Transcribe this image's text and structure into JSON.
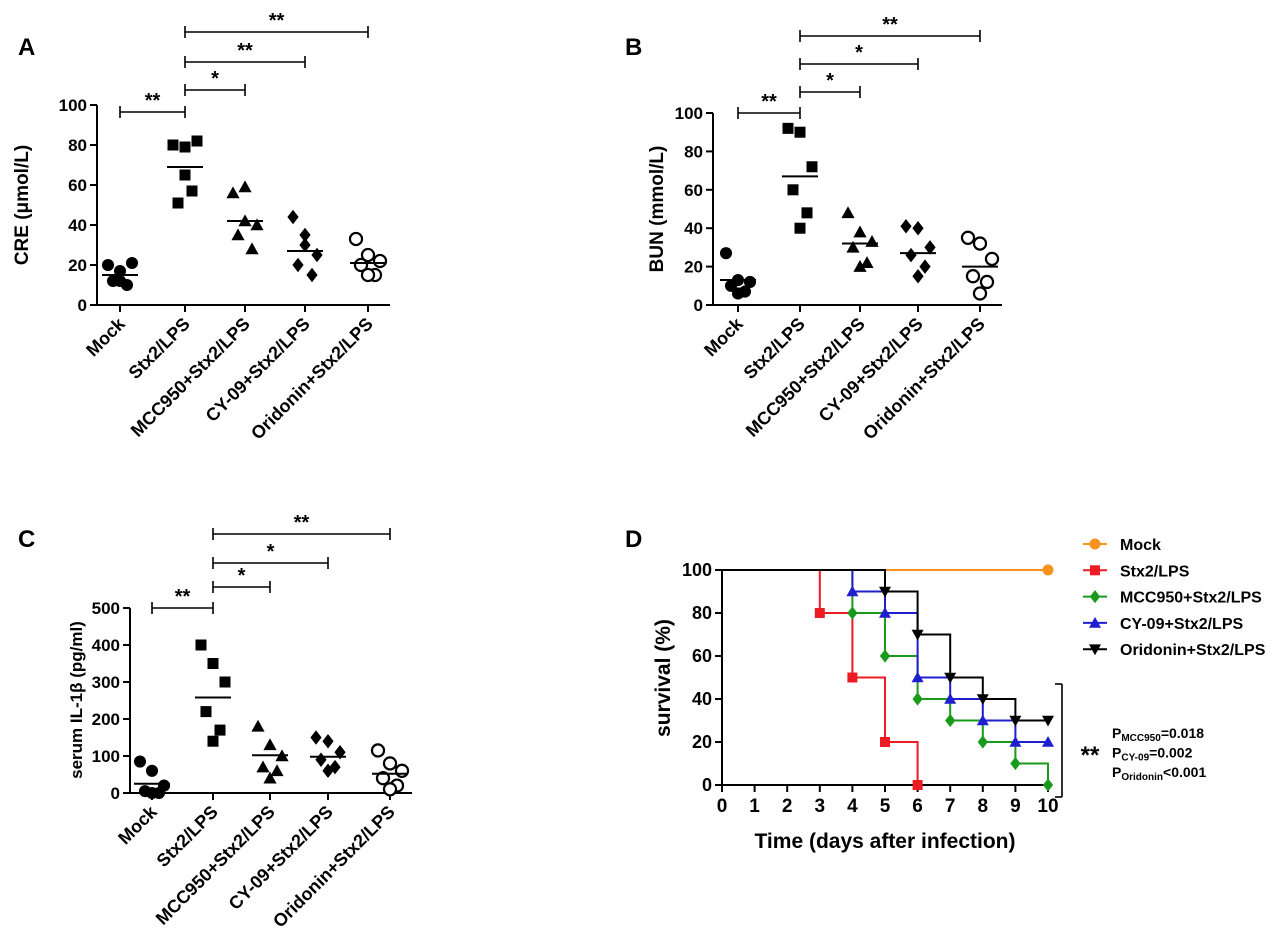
{
  "chart_data": [
    {
      "type": "dot",
      "title": "A",
      "ylabel": "CRE (μmol/L)",
      "categories": [
        "Mock",
        "Stx2/LPS",
        "MCC950+Stx2/LPS",
        "CY-09+Stx2/LPS",
        "Oridonin+Stx2/LPS"
      ],
      "markers": [
        "circle",
        "square",
        "triangle",
        "diamond",
        "open-circle"
      ],
      "values": [
        [
          20,
          17,
          21,
          12,
          10,
          12
        ],
        [
          80,
          79,
          82,
          51,
          57,
          65
        ],
        [
          56,
          59,
          40,
          35,
          28,
          42
        ],
        [
          44,
          35,
          25,
          20,
          15,
          30
        ],
        [
          33,
          25,
          22,
          20,
          15,
          15
        ]
      ],
      "means": [
        15,
        69,
        42,
        27,
        21
      ],
      "ylim": [
        0,
        100
      ],
      "yticks": [
        0,
        20,
        40,
        60,
        80,
        100
      ],
      "brackets": [
        {
          "from": "Mock",
          "to": "Stx2/LPS",
          "label": "**"
        },
        {
          "from": "Stx2/LPS",
          "to": "MCC950+Stx2/LPS",
          "label": "*"
        },
        {
          "from": "Stx2/LPS",
          "to": "CY-09+Stx2/LPS",
          "label": "**"
        },
        {
          "from": "Stx2/LPS",
          "to": "Oridonin+Stx2/LPS",
          "label": "**"
        }
      ]
    },
    {
      "type": "dot",
      "title": "B",
      "ylabel": "BUN (mmol/L)",
      "categories": [
        "Mock",
        "Stx2/LPS",
        "MCC950+Stx2/LPS",
        "CY-09+Stx2/LPS",
        "Oridonin+Stx2/LPS"
      ],
      "markers": [
        "circle",
        "square",
        "triangle",
        "diamond",
        "open-circle"
      ],
      "values": [
        [
          27,
          13,
          12,
          10,
          7,
          6
        ],
        [
          92,
          90,
          72,
          60,
          48,
          40
        ],
        [
          48,
          38,
          33,
          30,
          22,
          20
        ],
        [
          41,
          40,
          30,
          26,
          20,
          15
        ],
        [
          35,
          32,
          24,
          15,
          12,
          6
        ]
      ],
      "means": [
        13,
        67,
        32,
        27,
        20
      ],
      "ylim": [
        0,
        100
      ],
      "yticks": [
        0,
        20,
        40,
        60,
        80,
        100
      ],
      "brackets": [
        {
          "from": "Mock",
          "to": "Stx2/LPS",
          "label": "**"
        },
        {
          "from": "Stx2/LPS",
          "to": "MCC950+Stx2/LPS",
          "label": "*"
        },
        {
          "from": "Stx2/LPS",
          "to": "CY-09+Stx2/LPS",
          "label": "*"
        },
        {
          "from": "Stx2/LPS",
          "to": "Oridonin+Stx2/LPS",
          "label": "**"
        }
      ]
    },
    {
      "type": "dot",
      "title": "C",
      "ylabel": "serum IL-1β  (pg/ml)",
      "categories": [
        "Mock",
        "Stx2/LPS",
        "MCC950+Stx2/LPS",
        "CY-09+Stx2/LPS",
        "Oridonin+Stx2/LPS"
      ],
      "markers": [
        "circle",
        "square",
        "triangle",
        "diamond",
        "open-circle"
      ],
      "values": [
        [
          85,
          60,
          20,
          5,
          0,
          0
        ],
        [
          400,
          350,
          300,
          220,
          170,
          140
        ],
        [
          180,
          130,
          100,
          70,
          60,
          40
        ],
        [
          150,
          140,
          110,
          90,
          70,
          60
        ],
        [
          115,
          80,
          60,
          40,
          20,
          10
        ]
      ],
      "means": [
        25,
        258,
        102,
        98,
        52
      ],
      "ylim": [
        0,
        500
      ],
      "yticks": [
        0,
        100,
        200,
        300,
        400,
        500
      ],
      "brackets": [
        {
          "from": "Mock",
          "to": "Stx2/LPS",
          "label": "**"
        },
        {
          "from": "Stx2/LPS",
          "to": "MCC950+Stx2/LPS",
          "label": "*"
        },
        {
          "from": "Stx2/LPS",
          "to": "CY-09+Stx2/LPS",
          "label": "*"
        },
        {
          "from": "Stx2/LPS",
          "to": "Oridonin+Stx2/LPS",
          "label": "**"
        }
      ]
    },
    {
      "type": "step",
      "title": "D",
      "xlabel": "Time (days after infection)",
      "ylabel": "survival (%)",
      "xlim": [
        0,
        10
      ],
      "xticks": [
        0,
        1,
        2,
        3,
        4,
        5,
        6,
        7,
        8,
        9,
        10
      ],
      "ylim": [
        0,
        100
      ],
      "yticks": [
        0,
        20,
        40,
        60,
        80,
        100
      ],
      "series": [
        {
          "name": "Mock",
          "color": "#f7931e",
          "marker": "circle",
          "x": [
            0,
            10
          ],
          "values": [
            100,
            100
          ]
        },
        {
          "name": "Stx2/LPS",
          "color": "#ed1c24",
          "marker": "square",
          "x": [
            0,
            3,
            4,
            5,
            6
          ],
          "values": [
            100,
            80,
            50,
            20,
            0
          ]
        },
        {
          "name": "MCC950+Stx2/LPS",
          "color": "#1a9a1a",
          "marker": "diamond",
          "x": [
            0,
            4,
            5,
            6,
            7,
            8,
            9,
            10
          ],
          "values": [
            100,
            80,
            60,
            40,
            30,
            20,
            10,
            0
          ]
        },
        {
          "name": "CY-09+Stx2/LPS",
          "color": "#1f1fd0",
          "marker": "triangle",
          "x": [
            0,
            4,
            5,
            6,
            7,
            8,
            9,
            10
          ],
          "values": [
            100,
            90,
            80,
            50,
            40,
            30,
            20,
            20
          ]
        },
        {
          "name": "Oridonin+Stx2/LPS",
          "color": "#000000",
          "marker": "triangle-down",
          "x": [
            0,
            5,
            6,
            7,
            8,
            9,
            10
          ],
          "values": [
            100,
            90,
            70,
            50,
            40,
            30,
            30
          ]
        }
      ],
      "significance": "**",
      "pvalues": [
        {
          "p": "P",
          "sub": "MCC950",
          "rest": "=0.018"
        },
        {
          "p": "P",
          "sub": "CY-09",
          "rest": "=0.002"
        },
        {
          "p": "P",
          "sub": "Oridonin",
          "rest": "<0.001"
        }
      ]
    }
  ]
}
